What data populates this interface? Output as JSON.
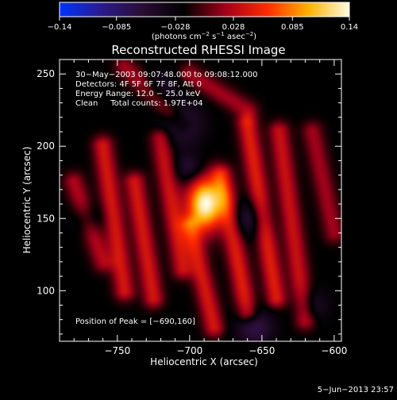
{
  "chart_data": {
    "type": "heatmap",
    "title": "Reconstructed RHESSI Image",
    "xlabel": "Heliocentric X (arcsec)",
    "ylabel": "Heliocentric Y (arcsec)",
    "xlim": [
      -790,
      -595
    ],
    "ylim": [
      65,
      260
    ],
    "x_ticks": [
      -750,
      -700,
      -650,
      -600
    ],
    "x_tick_labels": [
      "−750",
      "−700",
      "−650",
      "−600"
    ],
    "y_ticks": [
      100,
      150,
      200,
      250
    ],
    "y_tick_labels": [
      "100",
      "150",
      "200",
      "250"
    ],
    "colorbar": {
      "range": [
        -0.14,
        0.14
      ],
      "ticks": [
        -0.14,
        -0.085,
        -0.028,
        0.028,
        0.085,
        0.14
      ],
      "tick_labels": [
        "−0.14",
        "−0.085",
        "−0.028",
        "0.028",
        "0.085",
        "0.14"
      ],
      "units_parts": [
        "(photons cm",
        "−2",
        " s",
        "−1",
        " asec",
        "−2",
        ")"
      ],
      "colors": [
        "#0033ff",
        "#2a1b8f",
        "#2b0d34",
        "#000000",
        "#a0001a",
        "#ff2a00",
        "#ffb000",
        "#fffbe0"
      ]
    },
    "annotations": [
      "30−May−2003 09:07:48.000 to 09:08:12.000",
      "Detectors: 4F 5F 6F 7F 8F, Att 0",
      "Energy Range: 12.0 − 25.0 keV",
      "Clean     Total counts: 1.97E+04"
    ],
    "peak_label": "Position of Peak = [−690,160]",
    "peak": {
      "x": -690,
      "y": 160,
      "value": 0.14
    },
    "background_level": -0.02,
    "sources": [
      {
        "x": -689,
        "y": 160,
        "sx": 9,
        "sy": 13,
        "amp": 0.16
      }
    ],
    "stripes": [
      {
        "x0": -780,
        "y0": 175,
        "x1": -760,
        "y1": 120,
        "amp": 0.045
      },
      {
        "x0": -760,
        "y0": 200,
        "x1": -745,
        "y1": 100,
        "amp": 0.06
      },
      {
        "x0": -738,
        "y0": 175,
        "x1": -725,
        "y1": 95,
        "amp": 0.06
      },
      {
        "x0": -720,
        "y0": 205,
        "x1": -705,
        "y1": 115,
        "amp": 0.055
      },
      {
        "x0": -700,
        "y0": 145,
        "x1": -683,
        "y1": 75,
        "amp": 0.06
      },
      {
        "x0": -678,
        "y0": 180,
        "x1": -660,
        "y1": 85,
        "amp": 0.065
      },
      {
        "x0": -660,
        "y0": 215,
        "x1": -640,
        "y1": 95,
        "amp": 0.065
      },
      {
        "x0": -638,
        "y0": 210,
        "x1": -620,
        "y1": 80,
        "amp": 0.055
      },
      {
        "x0": -615,
        "y0": 210,
        "x1": -600,
        "y1": 140,
        "amp": 0.04
      },
      {
        "x0": -745,
        "y0": 255,
        "x1": -705,
        "y1": 215,
        "amp": 0.04
      },
      {
        "x0": -700,
        "y0": 250,
        "x1": -660,
        "y1": 225,
        "amp": 0.04
      }
    ],
    "stripe_width": 5,
    "dark_spots": [
      {
        "x": -705,
        "y": 215,
        "s": 10,
        "amp": -0.05
      },
      {
        "x": -700,
        "y": 185,
        "s": 7,
        "amp": -0.04
      },
      {
        "x": -660,
        "y": 150,
        "s": 9,
        "amp": -0.04
      },
      {
        "x": -655,
        "y": 75,
        "s": 9,
        "amp": -0.05
      },
      {
        "x": -720,
        "y": 240,
        "s": 8,
        "amp": -0.03
      },
      {
        "x": -770,
        "y": 150,
        "s": 7,
        "amp": -0.03
      },
      {
        "x": -615,
        "y": 90,
        "s": 8,
        "amp": -0.03
      }
    ],
    "grid": false
  },
  "footer_date": "5−Jun−2013 23:57"
}
